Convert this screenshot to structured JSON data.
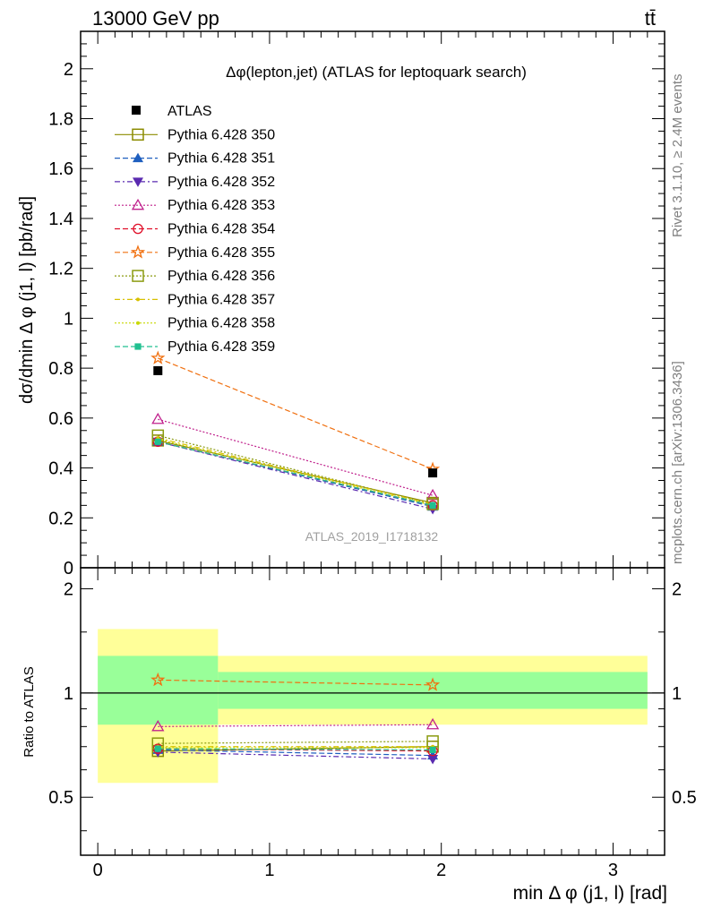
{
  "header": {
    "energy_label": "13000 GeV pp",
    "process_label": "tt̄"
  },
  "side": {
    "rivet_label": "Rivet 3.1.10, ≥ 2.4M events",
    "mcplots_label": "mcplots.cern.ch [arXiv:1306.3436]"
  },
  "chart_data": [
    {
      "type": "scatter",
      "title": "Δφ(lepton,jet) (ATLAS for leptoquark search)",
      "watermark": "ATLAS_2019_I1718132",
      "ylabel": "dσ/dmin Δ φ (j1, l) [pb/rad]",
      "xlim": [
        -0.1,
        3.3
      ],
      "ylim": [
        0,
        2.15
      ],
      "yticks": [
        "0",
        "0.2",
        "0.4",
        "0.6",
        "0.8",
        "1",
        "1.2",
        "1.4",
        "1.6",
        "1.8",
        "2"
      ],
      "x": [
        0.35,
        1.95
      ],
      "data": {
        "name": "ATLAS",
        "values": [
          0.79,
          0.38
        ]
      },
      "series": [
        {
          "name": "Pythia 6.428 350",
          "color": "#8b8b00",
          "dash": "",
          "marker": "square-open",
          "values": [
            0.51,
            0.26
          ]
        },
        {
          "name": "Pythia 6.428 351",
          "color": "#1f5fbf",
          "dash": "6,3",
          "marker": "triangle-up",
          "values": [
            0.505,
            0.245
          ]
        },
        {
          "name": "Pythia 6.428 352",
          "color": "#5a2ab0",
          "dash": "6,3,2,3",
          "marker": "triangle-down",
          "values": [
            0.505,
            0.235
          ]
        },
        {
          "name": "Pythia 6.428 353",
          "color": "#c0208c",
          "dash": "2,2",
          "marker": "triangle-up-open",
          "values": [
            0.595,
            0.29
          ]
        },
        {
          "name": "Pythia 6.428 354",
          "color": "#e0102a",
          "dash": "6,3",
          "marker": "circle-open",
          "values": [
            0.505,
            0.25
          ]
        },
        {
          "name": "Pythia 6.428 355",
          "color": "#f07010",
          "dash": "6,3",
          "marker": "star-open",
          "values": [
            0.84,
            0.395
          ]
        },
        {
          "name": "Pythia 6.428 356",
          "color": "#8b9b10",
          "dash": "2,2",
          "marker": "square-open",
          "values": [
            0.53,
            0.255
          ]
        },
        {
          "name": "Pythia 6.428 357",
          "color": "#d8c000",
          "dash": "6,3,2,3",
          "marker": "dot",
          "values": [
            0.52,
            0.255
          ]
        },
        {
          "name": "Pythia 6.428 358",
          "color": "#c8d800",
          "dash": "2,2",
          "marker": "dot",
          "values": [
            0.515,
            0.25
          ]
        },
        {
          "name": "Pythia 6.428 359",
          "color": "#20c090",
          "dash": "6,3",
          "marker": "square-filled",
          "values": [
            0.505,
            0.25
          ]
        }
      ]
    },
    {
      "type": "scatter",
      "ylabel": "Ratio to ATLAS",
      "xlabel": "min Δ φ (j1, l) [rad]",
      "xlim": [
        -0.1,
        3.3
      ],
      "ylim": [
        0.34,
        2.3
      ],
      "yticks": [
        "0.5",
        "1",
        "2"
      ],
      "xticks": [
        "0",
        "1",
        "2",
        "3"
      ],
      "bands": [
        {
          "x0": 0.0,
          "x1": 0.7,
          "yellow": [
            0.55,
            1.53
          ],
          "green": [
            0.81,
            1.28
          ]
        },
        {
          "x0": 0.7,
          "x1": 3.2,
          "yellow": [
            0.81,
            1.28
          ],
          "green": [
            0.9,
            1.15
          ]
        }
      ],
      "x": [
        0.35,
        1.95
      ],
      "ratios": [
        [
          0.68,
          0.7
        ],
        [
          0.685,
          0.66
        ],
        [
          0.675,
          0.645
        ],
        [
          0.8,
          0.81
        ],
        [
          0.69,
          0.68
        ],
        [
          1.09,
          1.055
        ],
        [
          0.715,
          0.725
        ],
        [
          0.7,
          0.7
        ],
        [
          0.695,
          0.695
        ],
        [
          0.69,
          0.685
        ]
      ]
    }
  ]
}
